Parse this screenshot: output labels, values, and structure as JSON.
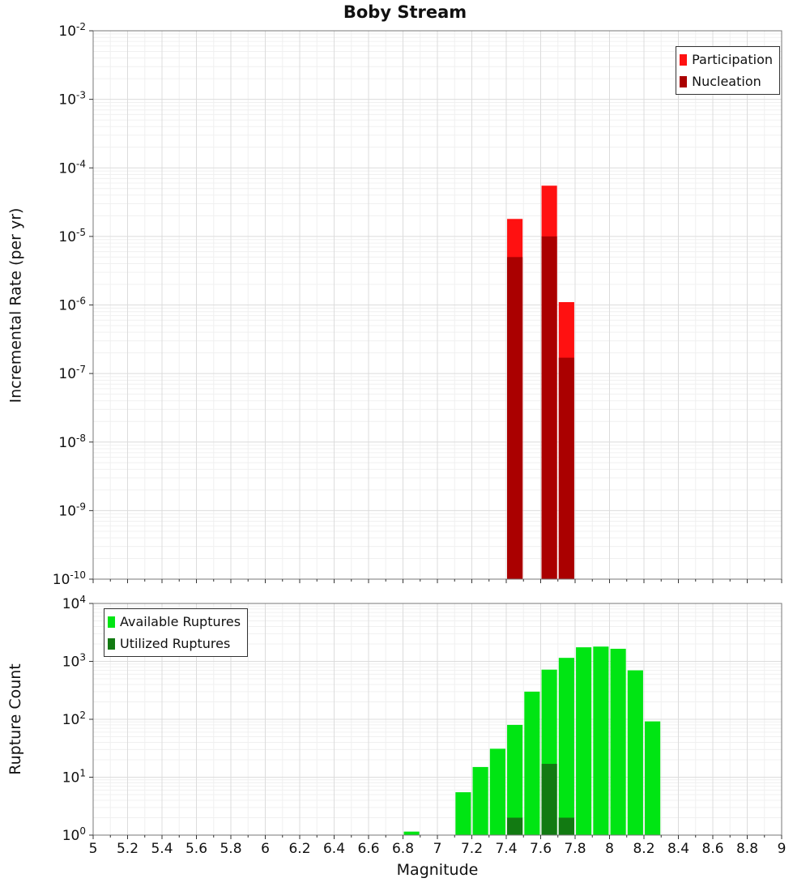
{
  "chart_data": [
    {
      "type": "bar",
      "title": "Boby Stream",
      "ylabel": "Incremental Rate (per yr)",
      "yscale": "log",
      "ylim_exp": [
        -10,
        -2
      ],
      "xlim": [
        5,
        9
      ],
      "bar_width": 0.1,
      "grid": true,
      "legend_position": "top-right",
      "x_tick_labels": [],
      "y_tick_labels": [
        "10^-2",
        "10^-3",
        "10^-4",
        "10^-5",
        "10^-6",
        "10^-7",
        "10^-8",
        "10^-9",
        "10^-10"
      ],
      "series": [
        {
          "name": "Participation",
          "color": "#ff1111",
          "bars": [
            {
              "x": 7.45,
              "value": 1.8e-05
            },
            {
              "x": 7.65,
              "value": 5.5e-05
            },
            {
              "x": 7.75,
              "value": 1.1e-06
            }
          ]
        },
        {
          "name": "Nucleation",
          "color": "#aa0000",
          "bars": [
            {
              "x": 7.45,
              "value": 5e-06
            },
            {
              "x": 7.65,
              "value": 1e-05
            },
            {
              "x": 7.75,
              "value": 1.7e-07
            }
          ]
        }
      ]
    },
    {
      "type": "bar",
      "title": "",
      "ylabel": "Rupture Count",
      "xlabel": "Magnitude",
      "yscale": "log",
      "ylim_exp": [
        0,
        4
      ],
      "xlim": [
        5,
        9
      ],
      "bar_width": 0.1,
      "grid": true,
      "legend_position": "top-left",
      "x_tick_labels": [
        "5",
        "5.2",
        "5.4",
        "5.6",
        "5.8",
        "6",
        "6.2",
        "6.4",
        "6.6",
        "6.8",
        "7",
        "7.2",
        "7.4",
        "7.6",
        "7.8",
        "8",
        "8.2",
        "8.4",
        "8.6",
        "8.8",
        "9"
      ],
      "y_tick_labels": [
        "10^4",
        "10^3",
        "10^2",
        "10^1",
        "10^0"
      ],
      "series": [
        {
          "name": "Available Ruptures",
          "color": "#00e513",
          "bars": [
            {
              "x": 6.85,
              "value": 1.15
            },
            {
              "x": 7.15,
              "value": 5.5
            },
            {
              "x": 7.25,
              "value": 15
            },
            {
              "x": 7.35,
              "value": 31
            },
            {
              "x": 7.45,
              "value": 80
            },
            {
              "x": 7.55,
              "value": 300
            },
            {
              "x": 7.65,
              "value": 720
            },
            {
              "x": 7.75,
              "value": 1150
            },
            {
              "x": 7.85,
              "value": 1750
            },
            {
              "x": 7.95,
              "value": 1800
            },
            {
              "x": 8.05,
              "value": 1650
            },
            {
              "x": 8.15,
              "value": 700
            },
            {
              "x": 8.25,
              "value": 92
            }
          ]
        },
        {
          "name": "Utilized Ruptures",
          "color": "#127a12",
          "bars": [
            {
              "x": 7.45,
              "value": 2
            },
            {
              "x": 7.65,
              "value": 17
            },
            {
              "x": 7.75,
              "value": 2
            }
          ]
        }
      ]
    }
  ],
  "colors": {
    "grid_major": "#dcdcdc",
    "grid_minor": "#f0f0f0",
    "plot_border": "#777777",
    "tick": "#333333"
  }
}
